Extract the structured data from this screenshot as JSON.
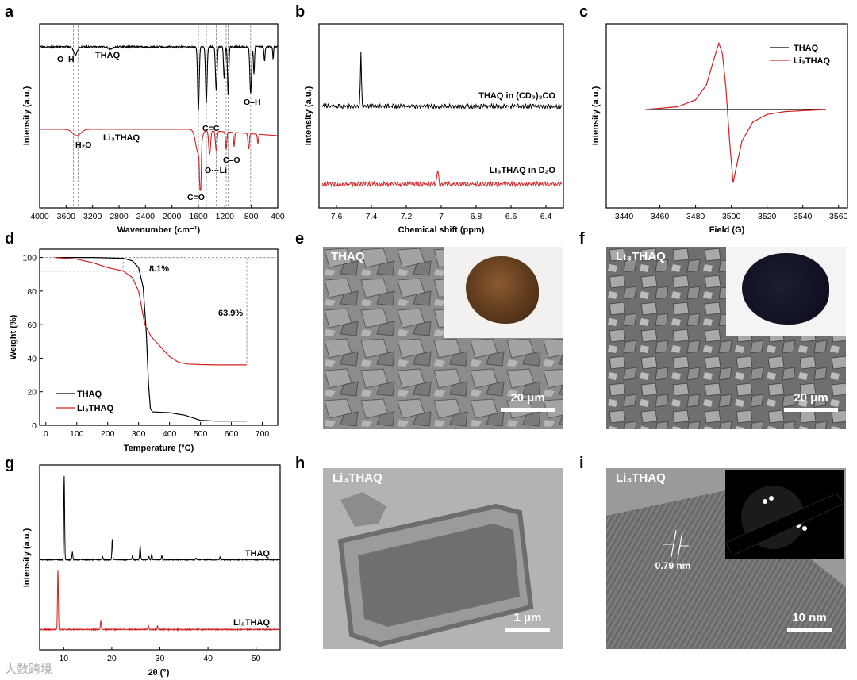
{
  "panel_labels": {
    "a": "a",
    "b": "b",
    "c": "c",
    "d": "d",
    "e": "e",
    "f": "f",
    "g": "g",
    "h": "h",
    "i": "i"
  },
  "watermark": "大数跨境",
  "colors": {
    "thaq": "#000000",
    "li3thaq": "#d42020"
  },
  "chart_data": [
    {
      "panel": "a",
      "type": "line",
      "xlabel": "Wavenumber (cm⁻¹)",
      "ylabel": "Intensity (a.u.)",
      "xlim": [
        4000,
        400
      ],
      "xticks": [
        4000,
        3600,
        3200,
        2800,
        2400,
        2000,
        1600,
        1200,
        800,
        400
      ],
      "series": [
        {
          "name": "THAQ"
        },
        {
          "name": "Li₃THAQ"
        }
      ],
      "annotations": [
        "O–H",
        "C=C",
        "O–H",
        "H₂O",
        "C–O",
        "O···Li",
        "C=O"
      ],
      "reference_lines_cm": [
        3490,
        3420,
        1600,
        1480,
        1330,
        1180,
        1150,
        810
      ]
    },
    {
      "panel": "b",
      "type": "line",
      "xlabel": "Chemical shift (ppm)",
      "ylabel": "Intensity (a.u.)",
      "xlim": [
        7.7,
        6.3
      ],
      "xticks": [
        7.6,
        7.4,
        7.2,
        7.0,
        6.8,
        6.6,
        6.4
      ],
      "series": [
        {
          "name": "THAQ in (CD₃)₂CO",
          "peak_ppm": 7.46
        },
        {
          "name": "Li₃THAQ in D₂O",
          "peak_ppm": 7.02
        }
      ]
    },
    {
      "panel": "c",
      "type": "line",
      "xlabel": "Field (G)",
      "ylabel": "Intensity (a.u.)",
      "xlim": [
        3430,
        3565
      ],
      "xticks": [
        3440,
        3460,
        3480,
        3500,
        3520,
        3540,
        3560
      ],
      "legend": "top-right",
      "series": [
        {
          "name": "THAQ",
          "x": [
            3452,
            3553
          ],
          "y": [
            0,
            0
          ]
        },
        {
          "name": "Li₃THAQ",
          "x": [
            3452,
            3470,
            3480,
            3486,
            3490,
            3493,
            3495,
            3497,
            3499,
            3501,
            3503,
            3506,
            3512,
            3520,
            3530,
            3553
          ],
          "y": [
            0,
            0.04,
            0.14,
            0.35,
            0.7,
            0.95,
            0.8,
            0.3,
            -0.45,
            -1.05,
            -0.8,
            -0.45,
            -0.18,
            -0.07,
            -0.03,
            0
          ]
        }
      ]
    },
    {
      "panel": "d",
      "type": "line",
      "xlabel": "Temperature (°C)",
      "ylabel": "Weight (%)",
      "xlim": [
        -20,
        750
      ],
      "ylim": [
        0,
        105
      ],
      "xticks": [
        0,
        100,
        200,
        300,
        400,
        500,
        600,
        700
      ],
      "yticks": [
        0,
        20,
        40,
        60,
        80,
        100
      ],
      "legend": "bottom-left",
      "annotations": [
        "8.1%",
        "63.9%"
      ],
      "series": [
        {
          "name": "THAQ",
          "x": [
            30,
            150,
            250,
            280,
            300,
            315,
            325,
            332,
            338,
            345,
            400,
            450,
            500,
            550,
            650
          ],
          "y": [
            100,
            100,
            99.5,
            98,
            94,
            82,
            55,
            25,
            10,
            8,
            7.5,
            6,
            3,
            2.5,
            2.5
          ]
        },
        {
          "name": "Li₃THAQ",
          "x": [
            30,
            100,
            150,
            200,
            250,
            280,
            300,
            320,
            340,
            360,
            380,
            400,
            430,
            460,
            500,
            550,
            650
          ],
          "y": [
            100,
            99,
            97,
            94,
            92,
            88,
            80,
            60,
            53,
            49,
            45,
            41,
            37.5,
            36.5,
            36.2,
            36,
            36
          ]
        }
      ]
    },
    {
      "panel": "g",
      "type": "line",
      "xlabel": "2θ (°)",
      "ylabel": "Intensity (a.u.)",
      "xlim": [
        5,
        55
      ],
      "xticks": [
        10,
        20,
        30,
        40,
        50
      ],
      "series": [
        {
          "name": "THAQ",
          "peaks_2theta": [
            10.1,
            11.8,
            20.1,
            18.1,
            24.3,
            25.9,
            27.7,
            28.3,
            30.4,
            37.5,
            42.5
          ],
          "peaks_rel": [
            1.0,
            0.09,
            0.24,
            0.03,
            0.05,
            0.17,
            0.04,
            0.07,
            0.05,
            0.02,
            0.03
          ]
        },
        {
          "name": "Li₃THAQ",
          "peaks_2theta": [
            8.8,
            17.7,
            27.6,
            29.5
          ],
          "peaks_rel": [
            1.0,
            0.14,
            0.07,
            0.06
          ]
        }
      ]
    }
  ],
  "images": {
    "e": {
      "tag": "THAQ",
      "scale": "20 μm"
    },
    "f": {
      "tag": "Li₃THAQ",
      "scale": "20 μm"
    },
    "h": {
      "tag": "Li₃THAQ",
      "scale": "1 μm"
    },
    "i": {
      "tag": "Li₃THAQ",
      "scale": "10 nm",
      "measure": "0.79 nm"
    }
  }
}
